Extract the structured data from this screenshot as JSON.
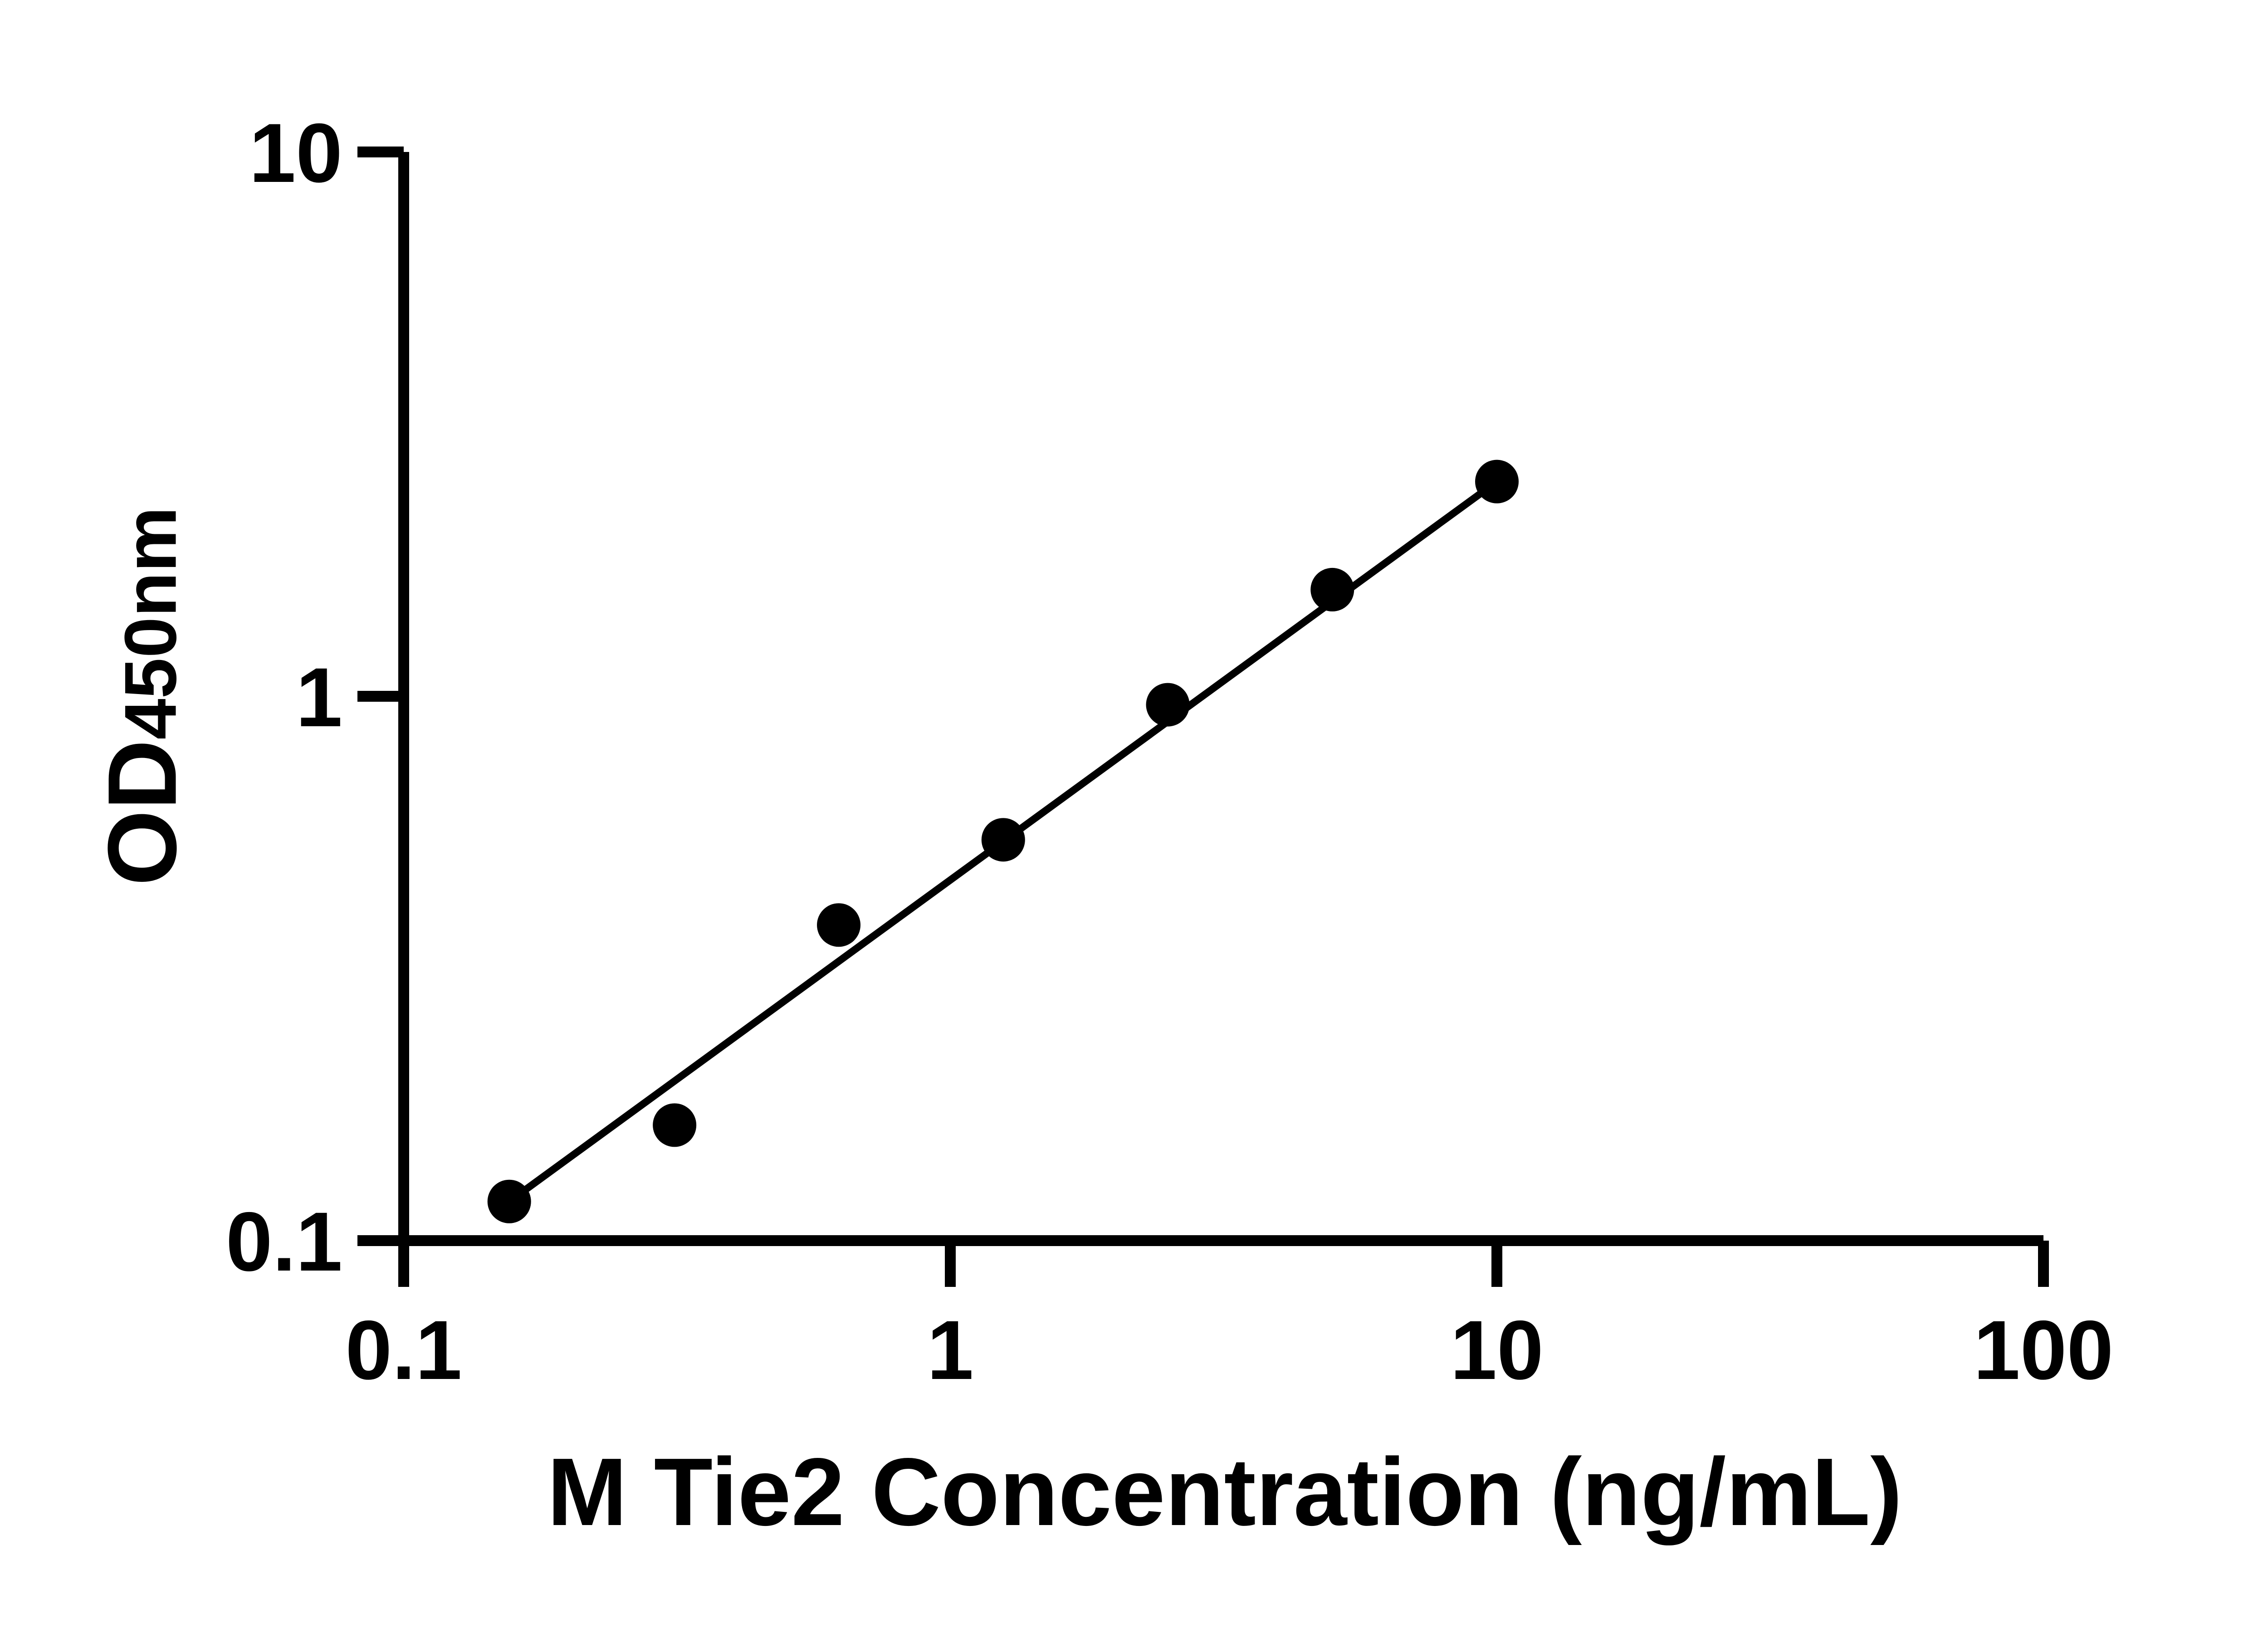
{
  "x_axis": {
    "title": "M Tie2 Concentration (ng/mL)",
    "scale": "log",
    "range": [
      0.1,
      100
    ],
    "tick_labels": [
      "0.1",
      "1",
      "10",
      "100"
    ],
    "tick_values": [
      0.1,
      1,
      10,
      100
    ]
  },
  "y_axis": {
    "title_main": "OD",
    "title_sub": "450nm",
    "scale": "log",
    "range": [
      0.1,
      10
    ],
    "tick_labels": [
      "0.1",
      "1",
      "10"
    ],
    "tick_values": [
      0.1,
      1,
      10
    ]
  },
  "chart_data": {
    "type": "scatter",
    "x": [
      0.156,
      0.313,
      0.625,
      1.25,
      2.5,
      5,
      10
    ],
    "y": [
      0.118,
      0.163,
      0.38,
      0.545,
      0.965,
      1.57,
      2.48
    ],
    "title": "",
    "xlabel": "M Tie2 Concentration (ng/mL)",
    "ylabel": "OD450nm",
    "xscale": "log",
    "yscale": "log",
    "xlim": [
      0.1,
      100
    ],
    "ylim": [
      0.1,
      10
    ],
    "grid": false,
    "legend": null,
    "marker": {
      "shape": "circle",
      "color": "#000000"
    },
    "trendline": {
      "style": "solid",
      "color": "#000000"
    },
    "axis_color": "#000000"
  }
}
